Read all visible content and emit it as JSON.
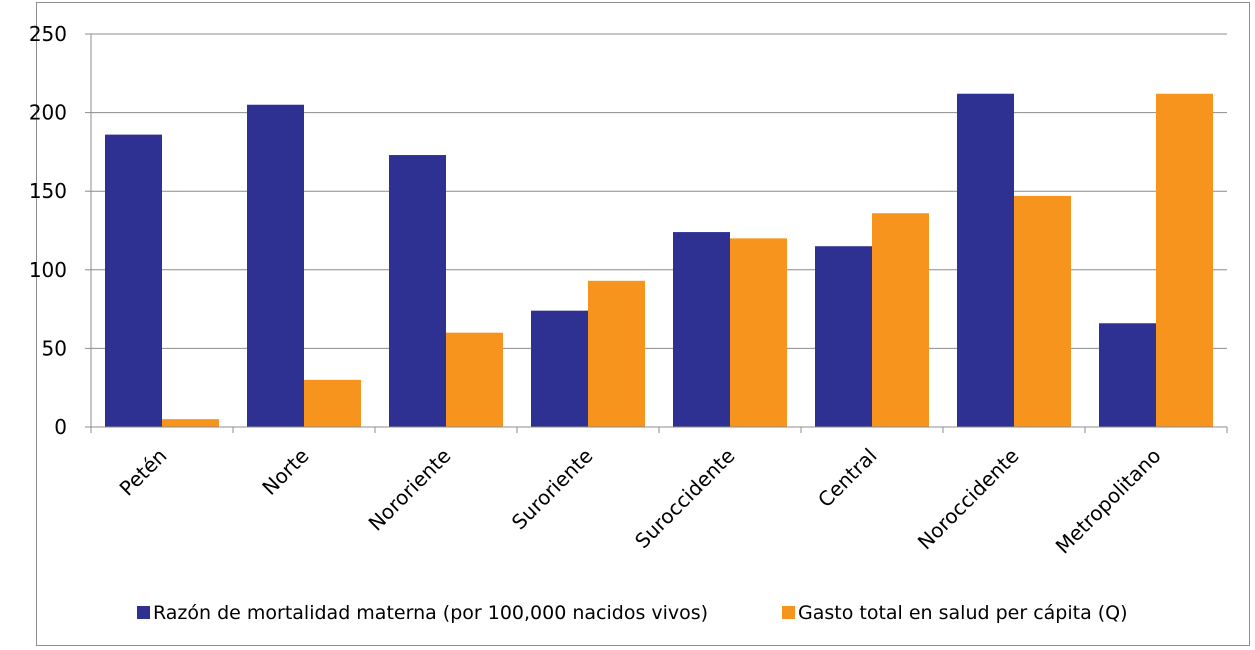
{
  "chart_data": {
    "type": "bar",
    "title": "",
    "xlabel": "",
    "ylabel": "",
    "ylim": [
      0,
      250
    ],
    "yticks": [
      "0",
      "50",
      "100",
      "150",
      "200",
      "250"
    ],
    "grid": true,
    "legend_position": "bottom",
    "categories": [
      "Petén",
      "Norte",
      "Nororiente",
      "Suroriente",
      "Suroccidente",
      "Central",
      "Noroccidente",
      "Metropolitano"
    ],
    "series": [
      {
        "name": "Razón de mortalidad materna (por 100,000 nacidos vivos)",
        "color": "#2e3191",
        "values": [
          186,
          205,
          173,
          74,
          124,
          115,
          212,
          66
        ]
      },
      {
        "name": "Gasto total en salud per cápita (Q)",
        "color": "#f7941d",
        "values": [
          5,
          30,
          60,
          93,
          120,
          136,
          147,
          212
        ]
      }
    ]
  }
}
